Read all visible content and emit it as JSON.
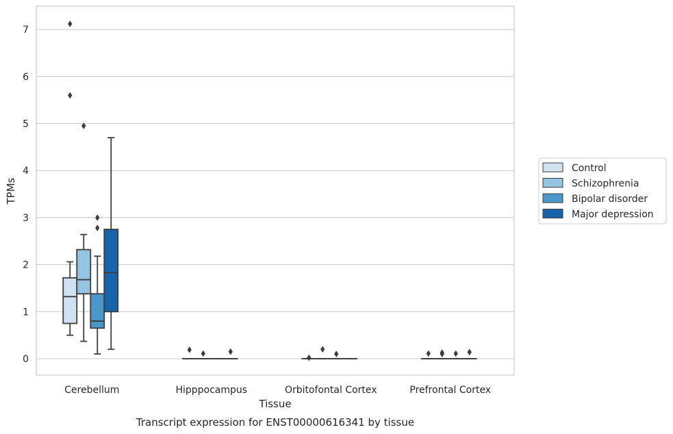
{
  "chart_data": {
    "type": "box",
    "title": "",
    "caption": "Transcript expression for ENST00000616341 by tissue",
    "xlabel": "Tissue",
    "ylabel": "TPMs",
    "ylim": [
      -0.35,
      7.5
    ],
    "yticks": [
      0,
      1,
      2,
      3,
      4,
      5,
      6,
      7
    ],
    "grid": "horizontal",
    "legend_position": "right",
    "categories": [
      "Cerebellum",
      "Hipppocampus",
      "Orbitofontal Cortex",
      "Prefrontal Cortex"
    ],
    "series": [
      {
        "name": "Control",
        "color": "#d0e1f2",
        "boxes": [
          {
            "q1": 0.75,
            "median": 1.32,
            "q3": 1.72,
            "whisker_low": 0.5,
            "whisker_high": 2.06,
            "outliers": [
              5.6,
              7.12
            ]
          },
          {
            "q1": 0.0,
            "median": 0.0,
            "q3": 0.0,
            "whisker_low": 0.0,
            "whisker_high": 0.0,
            "outliers": [
              0.19
            ]
          },
          {
            "q1": 0.0,
            "median": 0.0,
            "q3": 0.0,
            "whisker_low": 0.0,
            "whisker_high": 0.0,
            "outliers": [
              0.02
            ]
          },
          {
            "q1": 0.0,
            "median": 0.0,
            "q3": 0.0,
            "whisker_low": 0.0,
            "whisker_high": 0.0,
            "outliers": [
              0.11
            ]
          }
        ]
      },
      {
        "name": "Schizophrenia",
        "color": "#94c4df",
        "boxes": [
          {
            "q1": 1.38,
            "median": 1.68,
            "q3": 2.32,
            "whisker_low": 0.37,
            "whisker_high": 2.64,
            "outliers": [
              4.95
            ]
          },
          {
            "q1": 0.0,
            "median": 0.0,
            "q3": 0.0,
            "whisker_low": 0.0,
            "whisker_high": 0.0,
            "outliers": [
              0.11
            ]
          },
          {
            "q1": 0.0,
            "median": 0.0,
            "q3": 0.0,
            "whisker_low": 0.0,
            "whisker_high": 0.0,
            "outliers": [
              0.2
            ]
          },
          {
            "q1": 0.0,
            "median": 0.0,
            "q3": 0.0,
            "whisker_low": 0.0,
            "whisker_high": 0.0,
            "outliers": [
              0.1,
              0.13
            ]
          }
        ]
      },
      {
        "name": "Bipolar disorder",
        "color": "#4a98c9",
        "boxes": [
          {
            "q1": 0.65,
            "median": 0.8,
            "q3": 1.38,
            "whisker_low": 0.1,
            "whisker_high": 2.18,
            "outliers": [
              2.78,
              3.0
            ]
          },
          {
            "q1": 0.0,
            "median": 0.0,
            "q3": 0.0,
            "whisker_low": 0.0,
            "whisker_high": 0.0,
            "outliers": []
          },
          {
            "q1": 0.0,
            "median": 0.0,
            "q3": 0.0,
            "whisker_low": 0.0,
            "whisker_high": 0.0,
            "outliers": [
              0.1
            ]
          },
          {
            "q1": 0.0,
            "median": 0.0,
            "q3": 0.0,
            "whisker_low": 0.0,
            "whisker_high": 0.0,
            "outliers": [
              0.11
            ]
          }
        ]
      },
      {
        "name": "Major depression",
        "color": "#1764ab",
        "boxes": [
          {
            "q1": 1.0,
            "median": 1.83,
            "q3": 2.75,
            "whisker_low": 0.2,
            "whisker_high": 4.7,
            "outliers": []
          },
          {
            "q1": 0.0,
            "median": 0.0,
            "q3": 0.0,
            "whisker_low": 0.0,
            "whisker_high": 0.0,
            "outliers": [
              0.15
            ]
          },
          {
            "q1": 0.0,
            "median": 0.0,
            "q3": 0.0,
            "whisker_low": 0.0,
            "whisker_high": 0.0,
            "outliers": []
          },
          {
            "q1": 0.0,
            "median": 0.0,
            "q3": 0.0,
            "whisker_low": 0.0,
            "whisker_high": 0.0,
            "outliers": [
              0.14
            ]
          }
        ]
      }
    ]
  }
}
